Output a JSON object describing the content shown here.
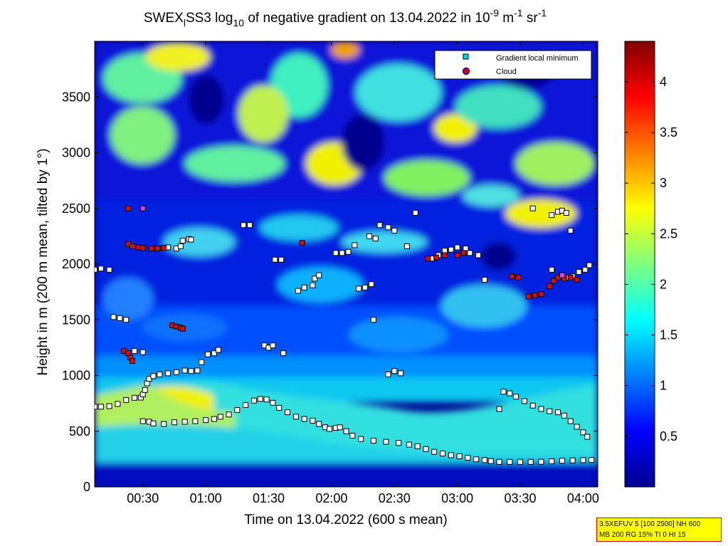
{
  "chart_data": {
    "type": "heatmap",
    "title_parts": {
      "prefix": "SWEX",
      "sub1": "l",
      "mid": "SS3 log",
      "sub2": "10",
      "text2": " of negative gradient on 13.04.2022 in 10",
      "sup1": "-9",
      "text3": " m",
      "sup2": "-1",
      "text4": " sr",
      "sup3": "-1"
    },
    "xlabel": "Time on 13.04.2022 (600 s mean)",
    "ylabel": "Height in m (200 m mean, tilted by 1°)",
    "x_range_minutes": [
      7,
      247
    ],
    "x_ticks": [
      {
        "label": "00:30",
        "minutes": 30
      },
      {
        "label": "01:00",
        "minutes": 60
      },
      {
        "label": "01:30",
        "minutes": 90
      },
      {
        "label": "02:00",
        "minutes": 120
      },
      {
        "label": "02:30",
        "minutes": 150
      },
      {
        "label": "03:00",
        "minutes": 180
      },
      {
        "label": "03:30",
        "minutes": 210
      },
      {
        "label": "04:00",
        "minutes": 240
      }
    ],
    "ylim": [
      0,
      4000
    ],
    "y_ticks": [
      0,
      500,
      1000,
      1500,
      2000,
      2500,
      3000,
      3500
    ],
    "y_tick_labels": [
      "0",
      "500",
      "1000",
      "1500",
      "2000",
      "2500",
      "3000",
      "3500"
    ],
    "colorbar": {
      "range": [
        0,
        4.4
      ],
      "ticks": [
        0.5,
        1,
        1.5,
        2,
        2.5,
        3,
        3.5,
        4
      ],
      "tick_labels": [
        "0.5",
        "1",
        "1.5",
        "2",
        "2.5",
        "3",
        "3.5",
        "4"
      ],
      "colormap": "jet"
    },
    "legend": {
      "placement": "top-right",
      "entries": [
        {
          "label": "Gradient local minimum",
          "marker": "square",
          "color": "#00d8e8"
        },
        {
          "label": "Cloud",
          "marker": "circle",
          "color": "#d00000",
          "edge": "#1010c0"
        }
      ]
    },
    "series": [
      {
        "kind": "minimum",
        "points": [
          [
            7,
            720
          ],
          [
            10,
            720
          ],
          [
            14,
            725
          ],
          [
            18,
            745
          ],
          [
            22,
            780
          ],
          [
            26,
            800
          ],
          [
            29,
            802
          ],
          [
            30,
            830
          ],
          [
            31,
            870
          ],
          [
            32,
            930
          ],
          [
            33,
            970
          ],
          [
            35,
            995
          ],
          [
            38,
            1010
          ],
          [
            42,
            1020
          ],
          [
            46,
            1030
          ],
          [
            50,
            1045
          ],
          [
            53,
            1040
          ],
          [
            56,
            1045
          ],
          [
            30,
            590
          ],
          [
            33,
            585
          ],
          [
            35,
            570
          ],
          [
            40,
            565
          ],
          [
            45,
            580
          ],
          [
            50,
            585
          ],
          [
            55,
            590
          ],
          [
            60,
            600
          ],
          [
            64,
            610
          ],
          [
            67,
            630
          ],
          [
            71,
            650
          ],
          [
            75,
            690
          ],
          [
            79,
            735
          ],
          [
            83,
            775
          ],
          [
            86,
            790
          ],
          [
            89,
            785
          ],
          [
            92,
            755
          ],
          [
            95,
            710
          ],
          [
            99,
            670
          ],
          [
            103,
            630
          ],
          [
            107,
            610
          ],
          [
            111,
            595
          ],
          [
            114,
            565
          ],
          [
            117,
            535
          ],
          [
            119,
            520
          ],
          [
            122,
            530
          ],
          [
            124,
            535
          ],
          [
            127,
            500
          ],
          [
            130,
            460
          ],
          [
            134,
            430
          ],
          [
            140,
            415
          ],
          [
            146,
            405
          ],
          [
            152,
            395
          ],
          [
            157,
            380
          ],
          [
            161,
            365
          ],
          [
            165,
            340
          ],
          [
            169,
            315
          ],
          [
            173,
            300
          ],
          [
            177,
            285
          ],
          [
            181,
            275
          ],
          [
            185,
            262
          ],
          [
            189,
            248
          ],
          [
            193,
            240
          ],
          [
            196,
            232
          ],
          [
            200,
            225
          ],
          [
            205,
            225
          ],
          [
            210,
            225
          ],
          [
            215,
            225
          ],
          [
            220,
            226
          ],
          [
            225,
            230
          ],
          [
            230,
            235
          ],
          [
            235,
            238
          ],
          [
            240,
            240
          ],
          [
            244,
            242
          ],
          [
            202,
            855
          ],
          [
            205,
            840
          ],
          [
            208,
            810
          ],
          [
            212,
            770
          ],
          [
            216,
            730
          ],
          [
            220,
            700
          ],
          [
            224,
            680
          ],
          [
            228,
            670
          ],
          [
            231,
            640
          ],
          [
            234,
            590
          ],
          [
            237,
            540
          ],
          [
            240,
            490
          ],
          [
            242,
            450
          ],
          [
            7,
            1950
          ],
          [
            10,
            1960
          ],
          [
            14,
            1950
          ],
          [
            16,
            1525
          ],
          [
            19,
            1515
          ],
          [
            22,
            1500
          ],
          [
            26,
            1220
          ],
          [
            30,
            1210
          ],
          [
            42,
            2150
          ],
          [
            46,
            2140
          ],
          [
            48,
            2160
          ],
          [
            49,
            2210
          ],
          [
            52,
            2225
          ],
          [
            53,
            2220
          ],
          [
            58,
            1120
          ],
          [
            61,
            1190
          ],
          [
            64,
            1200
          ],
          [
            66,
            1230
          ],
          [
            78,
            2350
          ],
          [
            81,
            2350
          ],
          [
            88,
            1270
          ],
          [
            90,
            1250
          ],
          [
            92,
            1270
          ],
          [
            97,
            1200
          ],
          [
            93,
            2040
          ],
          [
            96,
            2040
          ],
          [
            104,
            1760
          ],
          [
            107,
            1790
          ],
          [
            111,
            1810
          ],
          [
            112,
            1870
          ],
          [
            114,
            1900
          ],
          [
            122,
            2100
          ],
          [
            125,
            2100
          ],
          [
            128,
            2110
          ],
          [
            131,
            2170
          ],
          [
            133,
            1780
          ],
          [
            136,
            1790
          ],
          [
            139,
            1820
          ],
          [
            138,
            2250
          ],
          [
            141,
            2230
          ],
          [
            140,
            1500
          ],
          [
            143,
            2350
          ],
          [
            147,
            2330
          ],
          [
            150,
            2300
          ],
          [
            147,
            1010
          ],
          [
            150,
            1040
          ],
          [
            153,
            1020
          ],
          [
            156,
            2160
          ],
          [
            160,
            2460
          ],
          [
            168,
            2050
          ],
          [
            171,
            2080
          ],
          [
            174,
            2120
          ],
          [
            177,
            2130
          ],
          [
            180,
            2150
          ],
          [
            184,
            2140
          ],
          [
            186,
            2100
          ],
          [
            190,
            2080
          ],
          [
            193,
            1860
          ],
          [
            200,
            700
          ],
          [
            216,
            2500
          ],
          [
            225,
            2440
          ],
          [
            228,
            2470
          ],
          [
            230,
            2480
          ],
          [
            232,
            2460
          ],
          [
            234,
            2300
          ],
          [
            225,
            1950
          ],
          [
            230,
            1900
          ],
          [
            235,
            1890
          ],
          [
            238,
            1930
          ],
          [
            241,
            1950
          ],
          [
            243,
            1990
          ],
          [
            233,
            1880
          ]
        ]
      },
      {
        "kind": "cloud",
        "points": [
          [
            23,
            2500
          ],
          [
            23,
            2180
          ],
          [
            25,
            2160
          ],
          [
            28,
            2150
          ],
          [
            30,
            2145
          ],
          [
            34,
            2140
          ],
          [
            37,
            2140
          ],
          [
            40,
            2145
          ],
          [
            21,
            1220
          ],
          [
            23,
            1200
          ],
          [
            24,
            1160
          ],
          [
            25,
            1130
          ],
          [
            44,
            1450
          ],
          [
            46,
            1440
          ],
          [
            48,
            1430
          ],
          [
            49,
            1420
          ],
          [
            106,
            2190
          ],
          [
            166,
            2050
          ],
          [
            170,
            2060
          ],
          [
            174,
            2080
          ],
          [
            180,
            2080
          ],
          [
            183,
            2100
          ],
          [
            206,
            1890
          ],
          [
            209,
            1880
          ],
          [
            214,
            1710
          ],
          [
            217,
            1720
          ],
          [
            220,
            1730
          ],
          [
            224,
            1800
          ],
          [
            226,
            1850
          ],
          [
            228,
            1880
          ],
          [
            231,
            1870
          ],
          [
            234,
            1880
          ],
          [
            237,
            1860
          ]
        ]
      },
      {
        "kind": "cloud-minimum",
        "points": [
          [
            30,
            2500
          ],
          [
            230,
            1900
          ]
        ]
      }
    ]
  },
  "info_box": {
    "line1": "3.5XEFUV 5 [100 2500] NH 600",
    "line2": "MB 200 RG 15% TI 0 HI 15"
  }
}
